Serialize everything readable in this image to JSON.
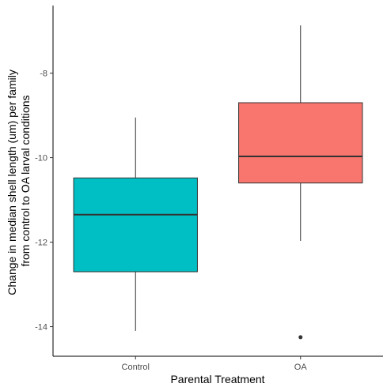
{
  "chart_data": {
    "type": "boxplot",
    "xlabel": "Parental Treatment",
    "ylabel_lines": [
      "Change in median shell length (um) per family",
      "from control to OA larval conditions"
    ],
    "ylim": [
      -14.7,
      -6.4
    ],
    "yticks": [
      -14,
      -12,
      -10,
      -8
    ],
    "ytick_labels": [
      "-14",
      "-12",
      "-10",
      "-8"
    ],
    "grid": false,
    "legend": "none",
    "categories": [
      "Control",
      "OA"
    ],
    "boxes": [
      {
        "category": "Control",
        "whisker_low": -14.1,
        "q1": -12.7,
        "median": -11.35,
        "q3": -10.48,
        "whisker_high": -9.05,
        "outliers": [],
        "color": "#00BFC4"
      },
      {
        "category": "OA",
        "whisker_low": -11.97,
        "q1": -10.6,
        "median": -9.97,
        "q3": -8.7,
        "whisker_high": -6.87,
        "outliers": [
          -14.25
        ],
        "color": "#F8766D"
      }
    ]
  }
}
